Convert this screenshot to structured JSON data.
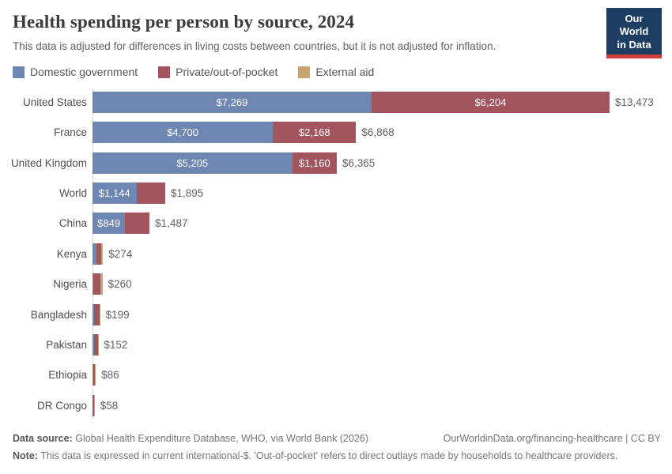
{
  "header": {
    "logo": {
      "line1": "Our World",
      "line2": "in Data"
    }
  },
  "chart_data": {
    "type": "bar",
    "orientation": "horizontal",
    "stacked": true,
    "title": "Health spending per person by source, 2024",
    "subtitle": "This data is adjusted for differences in living costs between countries, but it is not adjusted for inflation.",
    "value_prefix": "$",
    "xlim": [
      0,
      13473
    ],
    "grid": false,
    "legend_position": "top",
    "categories": [
      "United States",
      "France",
      "United Kingdom",
      "World",
      "China",
      "Kenya",
      "Nigeria",
      "Bangladesh",
      "Pakistan",
      "Ethiopia",
      "DR Congo"
    ],
    "series": [
      {
        "name": "Domestic government",
        "color": "#6d87b2",
        "values": [
          7269,
          4700,
          5205,
          1144,
          849,
          100,
          20,
          31,
          41,
          20,
          8
        ]
      },
      {
        "name": "Private/out-of-pocket",
        "color": "#a3555e",
        "values": [
          6204,
          2168,
          1160,
          751,
          638,
          120,
          186,
          155,
          103,
          42,
          33
        ]
      },
      {
        "name": "External aid",
        "color": "#c9a470",
        "values": [
          0,
          0,
          0,
          0,
          0,
          54,
          54,
          13,
          8,
          24,
          17
        ]
      }
    ],
    "totals": [
      13473,
      6868,
      6365,
      1895,
      1487,
      274,
      260,
      199,
      152,
      86,
      58
    ],
    "visible_segment_labels": [
      "$7,269",
      "$6,204",
      "$4,700",
      "$2,168",
      "$5,205",
      "$1,160",
      "$1,144",
      "$849"
    ]
  },
  "footer": {
    "source_label": "Data source:",
    "source_text": "Global Health Expenditure Database, WHO, via World Bank (2026)",
    "link": "OurWorldinData.org/financing-healthcare | CC BY",
    "note_label": "Note:",
    "note_text": "This data is expressed in current international-$. 'Out-of-pocket' refers to direct outlays made by households to healthcare providers."
  }
}
